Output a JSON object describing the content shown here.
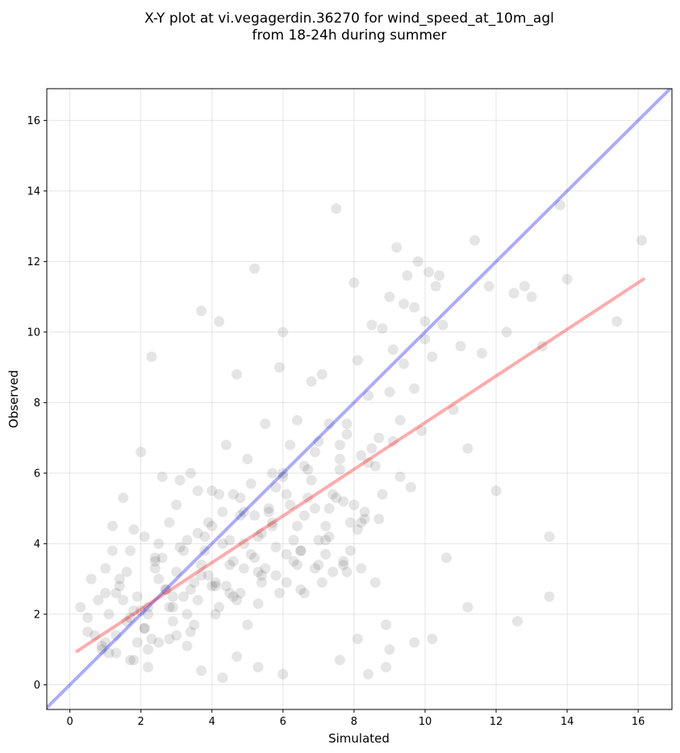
{
  "chart_data": {
    "type": "scatter",
    "title_line1": "X-Y plot at vi.vegagerdin.36270 for wind_speed_at_10m_agl",
    "title_line2": "from 18-24h during summer",
    "xlabel": "Simulated",
    "ylabel": "Observed",
    "xlim": [
      -0.65,
      16.95
    ],
    "ylim": [
      -0.7,
      16.9
    ],
    "xticks": [
      0,
      2,
      4,
      6,
      8,
      10,
      12,
      14,
      16
    ],
    "yticks": [
      0,
      2,
      4,
      6,
      8,
      10,
      12,
      14,
      16
    ],
    "grid": true,
    "colors": {
      "points": "#000000",
      "identity_line": "#0000ff",
      "fit_line": "#ff0000",
      "grid": "#cccccc"
    },
    "lines": [
      {
        "role": "identity",
        "x": [
          -0.65,
          16.95
        ],
        "y": [
          -0.65,
          16.95
        ],
        "color": "#0000ff"
      },
      {
        "role": "fit",
        "x": [
          0.2,
          16.15
        ],
        "y": [
          0.95,
          11.5
        ],
        "color": "#ff0000"
      }
    ],
    "points_x": [
      0.3,
      0.5,
      0.6,
      0.8,
      0.9,
      1.0,
      1.1,
      1.2,
      1.3,
      1.4,
      1.5,
      1.6,
      1.7,
      1.8,
      1.9,
      2.0,
      2.1,
      2.2,
      2.3,
      2.4,
      2.5,
      2.6,
      2.7,
      2.8,
      2.9,
      3.0,
      3.1,
      3.2,
      3.3,
      3.4,
      3.5,
      3.6,
      3.7,
      3.8,
      3.9,
      4.0,
      4.1,
      4.2,
      4.3,
      4.4,
      4.5,
      4.6,
      4.7,
      4.8,
      4.9,
      5.0,
      5.1,
      5.2,
      5.3,
      5.4,
      5.5,
      5.6,
      5.7,
      5.8,
      5.9,
      6.0,
      6.1,
      6.2,
      6.3,
      6.4,
      6.5,
      6.6,
      6.7,
      6.8,
      6.9,
      7.0,
      7.1,
      7.2,
      7.3,
      7.4,
      7.5,
      7.6,
      7.7,
      7.8,
      7.9,
      8.0,
      8.1,
      8.2,
      8.3,
      8.4,
      8.5,
      8.6,
      8.7,
      8.8,
      8.9,
      9.0,
      9.1,
      9.2,
      9.3,
      9.4,
      9.5,
      9.6,
      9.7,
      9.8,
      9.9,
      10.0,
      10.1,
      10.2,
      10.3,
      10.4,
      10.5,
      10.6,
      10.8,
      11.0,
      11.2,
      11.4,
      11.6,
      11.8,
      12.0,
      12.3,
      12.5,
      12.8,
      13.0,
      13.3,
      13.5,
      13.8,
      14.0,
      15.4,
      16.1,
      0.7,
      1.0,
      1.3,
      1.6,
      1.9,
      2.2,
      2.5,
      2.8,
      3.1,
      3.4,
      3.7,
      4.0,
      4.3,
      4.6,
      4.9,
      5.2,
      5.5,
      5.8,
      6.1,
      6.4,
      6.7,
      7.0,
      7.3,
      7.6,
      7.9,
      8.2,
      8.5,
      8.8,
      9.1,
      9.4,
      9.7,
      10.0,
      1.2,
      1.5,
      1.8,
      2.1,
      2.4,
      2.7,
      3.0,
      3.3,
      3.6,
      3.9,
      4.2,
      4.5,
      4.8,
      5.1,
      5.4,
      5.7,
      6.0,
      6.3,
      6.6,
      6.9,
      7.2,
      7.5,
      7.8,
      8.1,
      8.4,
      8.7,
      9.0,
      9.3,
      2.2,
      3.7,
      4.3,
      4.7,
      5.3,
      6.0,
      7.6,
      8.9,
      9.7,
      10.2,
      11.2,
      12.6,
      13.5,
      1.0,
      1.4,
      1.8,
      2.2,
      2.6,
      3.0,
      3.4,
      3.8,
      4.2,
      4.6,
      5.0,
      5.4,
      5.8,
      6.2,
      6.6,
      7.0,
      7.4,
      7.8,
      8.2,
      8.6,
      9.0,
      2.0,
      2.4,
      2.8,
      3.2,
      3.6,
      4.0,
      4.4,
      4.8,
      5.2,
      5.6,
      6.0,
      6.4,
      6.8,
      7.2,
      7.6,
      8.0,
      8.4,
      0.5,
      0.9,
      1.3,
      1.7,
      2.1,
      2.5,
      2.9,
      3.3,
      3.7,
      4.1,
      4.5,
      4.9,
      5.3,
      5.7,
      6.1,
      6.5,
      6.9,
      7.3,
      7.7,
      8.1,
      1.1,
      1.7,
      2.3,
      2.9,
      3.5,
      4.1,
      4.7,
      5.3,
      5.9,
      6.5,
      7.1,
      7.7,
      8.3,
      8.9
    ],
    "points_y": [
      2.2,
      1.5,
      3.0,
      2.4,
      1.0,
      3.3,
      2.0,
      4.5,
      1.4,
      2.8,
      5.3,
      1.8,
      3.8,
      2.1,
      1.2,
      6.6,
      4.2,
      2.0,
      9.3,
      3.5,
      1.2,
      5.9,
      2.7,
      4.6,
      1.8,
      3.2,
      5.8,
      2.5,
      4.1,
      6.0,
      2.9,
      5.5,
      10.6,
      3.8,
      4.6,
      5.5,
      2.9,
      10.3,
      4.0,
      6.8,
      3.4,
      5.4,
      8.8,
      2.6,
      4.9,
      6.4,
      5.7,
      11.8,
      4.2,
      3.1,
      7.4,
      5.0,
      6.0,
      3.9,
      9.0,
      10.0,
      5.4,
      6.8,
      4.1,
      7.5,
      3.8,
      6.2,
      5.3,
      8.6,
      3.3,
      6.9,
      8.8,
      4.5,
      7.4,
      3.2,
      13.5,
      6.1,
      5.2,
      7.4,
      3.8,
      11.4,
      9.2,
      6.5,
      4.9,
      8.2,
      10.2,
      6.2,
      4.7,
      10.1,
      1.7,
      11.0,
      9.5,
      12.4,
      7.5,
      10.8,
      11.6,
      5.6,
      10.7,
      12.0,
      7.2,
      9.8,
      11.7,
      9.3,
      11.3,
      11.6,
      10.2,
      3.6,
      7.8,
      9.6,
      6.7,
      12.6,
      9.4,
      11.3,
      5.5,
      10.0,
      11.1,
      11.3,
      11.0,
      9.6,
      4.2,
      13.6,
      11.5,
      10.3,
      12.6,
      1.4,
      2.6,
      0.9,
      3.2,
      2.5,
      1.0,
      4.0,
      2.2,
      3.9,
      1.5,
      3.4,
      2.8,
      4.9,
      2.5,
      4.0,
      4.8,
      3.3,
      5.6,
      2.9,
      4.5,
      6.1,
      3.4,
      5.0,
      6.4,
      4.6,
      3.3,
      6.7,
      5.4,
      6.9,
      9.1,
      8.4,
      10.3,
      3.8,
      2.4,
      4.4,
      1.6,
      3.6,
      2.7,
      5.1,
      2.0,
      4.3,
      3.1,
      5.4,
      2.6,
      4.8,
      3.7,
      2.9,
      4.6,
      5.9,
      3.5,
      4.8,
      6.6,
      3.7,
      5.3,
      7.1,
      4.4,
      6.3,
      7.0,
      8.3,
      5.9,
      0.5,
      0.4,
      0.2,
      0.8,
      0.5,
      0.3,
      0.7,
      0.5,
      1.2,
      1.3,
      2.2,
      1.8,
      2.5,
      1.2,
      3.0,
      0.7,
      2.2,
      3.6,
      1.4,
      2.7,
      4.2,
      2.2,
      3.5,
      1.7,
      4.3,
      3.1,
      5.1,
      2.6,
      4.1,
      5.4,
      3.2,
      4.6,
      2.9,
      1.0,
      2.1,
      3.3,
      1.3,
      3.8,
      2.4,
      4.5,
      2.8,
      5.3,
      3.6,
      4.9,
      6.0,
      3.4,
      5.8,
      4.1,
      6.8,
      5.1,
      0.3,
      1.9,
      1.1,
      2.6,
      0.7,
      1.6,
      3.0,
      2.2,
      1.1,
      3.1,
      2.0,
      4.1,
      3.3,
      2.3,
      4.5,
      3.7,
      2.7,
      5.0,
      4.2,
      3.4,
      1.3,
      0.9,
      1.9,
      1.3,
      2.5,
      1.7,
      2.8,
      2.4,
      3.2,
      2.6,
      3.8,
      2.9,
      3.5,
      4.7
    ]
  }
}
